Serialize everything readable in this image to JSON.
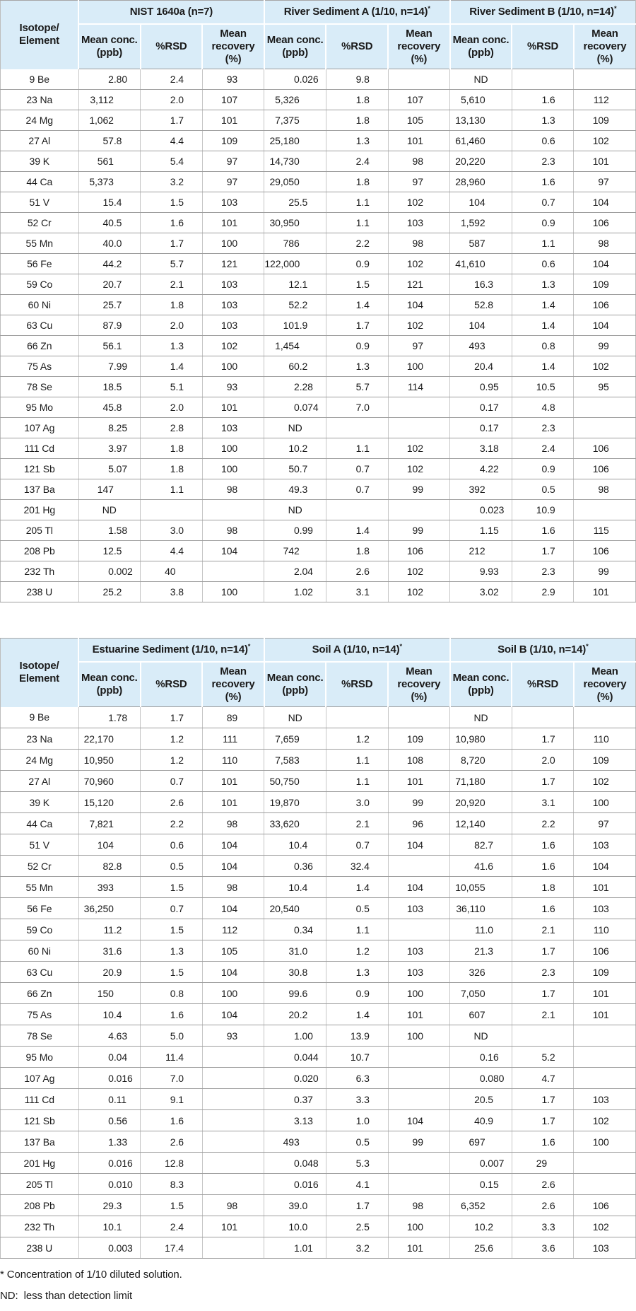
{
  "colors": {
    "header_bg": "#d9ecf8",
    "row_line": "#9e9e9e",
    "column_line": "#c6c6c6",
    "text": "#1a1a1a"
  },
  "footnotes": [
    "* Concentration of 1/10 diluted solution.",
    "ND:  less than detection limit"
  ],
  "tables": [
    {
      "corner_lines": [
        "Isotope/",
        "Element"
      ],
      "groups": [
        "NIST 1640a (n=7)",
        "River Sediment A (1/10, n=14)*",
        "River Sediment B (1/10, n=14)*"
      ],
      "sub_header_lines": [
        [
          "Mean conc.",
          "(ppb)"
        ],
        [
          "%RSD"
        ],
        [
          "Mean",
          "recovery",
          "(%)"
        ]
      ],
      "rows": [
        {
          "element": "9 Be",
          "values": [
            "2.80",
            "2.4",
            "93",
            "0.026",
            "9.8",
            "",
            "ND",
            "",
            ""
          ]
        },
        {
          "element": "23 Na",
          "values": [
            "3,112",
            "2.0",
            "107",
            "5,326",
            "1.8",
            "107",
            "5,610",
            "1.6",
            "112"
          ]
        },
        {
          "element": "24 Mg",
          "values": [
            "1,062",
            "1.7",
            "101",
            "7,375",
            "1.8",
            "105",
            "13,130",
            "1.3",
            "109"
          ]
        },
        {
          "element": "27 Al",
          "values": [
            "57.8",
            "4.4",
            "109",
            "25,180",
            "1.3",
            "101",
            "61,460",
            "0.6",
            "102"
          ]
        },
        {
          "element": "39 K",
          "values": [
            "561",
            "5.4",
            "97",
            "14,730",
            "2.4",
            "98",
            "20,220",
            "2.3",
            "101"
          ]
        },
        {
          "element": "44 Ca",
          "values": [
            "5,373",
            "3.2",
            "97",
            "29,050",
            "1.8",
            "97",
            "28,960",
            "1.6",
            "97"
          ]
        },
        {
          "element": "51 V",
          "values": [
            "15.4",
            "1.5",
            "103",
            "25.5",
            "1.1",
            "102",
            "104",
            "0.7",
            "104"
          ]
        },
        {
          "element": "52 Cr",
          "values": [
            "40.5",
            "1.6",
            "101",
            "30,950",
            "1.1",
            "103",
            "1,592",
            "0.9",
            "106"
          ]
        },
        {
          "element": "55 Mn",
          "values": [
            "40.0",
            "1.7",
            "100",
            "786",
            "2.2",
            "98",
            "587",
            "1.1",
            "98"
          ]
        },
        {
          "element": "56 Fe",
          "values": [
            "44.2",
            "5.7",
            "121",
            "122,000",
            "0.9",
            "102",
            "41,610",
            "0.6",
            "104"
          ]
        },
        {
          "element": "59 Co",
          "values": [
            "20.7",
            "2.1",
            "103",
            "12.1",
            "1.5",
            "121",
            "16.3",
            "1.3",
            "109"
          ]
        },
        {
          "element": "60 Ni",
          "values": [
            "25.7",
            "1.8",
            "103",
            "52.2",
            "1.4",
            "104",
            "52.8",
            "1.4",
            "106"
          ]
        },
        {
          "element": "63 Cu",
          "values": [
            "87.9",
            "2.0",
            "103",
            "101.9",
            "1.7",
            "102",
            "104",
            "1.4",
            "104"
          ]
        },
        {
          "element": "66 Zn",
          "values": [
            "56.1",
            "1.3",
            "102",
            "1,454",
            "0.9",
            "97",
            "493",
            "0.8",
            "99"
          ]
        },
        {
          "element": "75 As",
          "values": [
            "7.99",
            "1.4",
            "100",
            "60.2",
            "1.3",
            "100",
            "20.4",
            "1.4",
            "102"
          ]
        },
        {
          "element": "78 Se",
          "values": [
            "18.5",
            "5.1",
            "93",
            "2.28",
            "5.7",
            "114",
            "0.95",
            "10.5",
            "95"
          ]
        },
        {
          "element": "95 Mo",
          "values": [
            "45.8",
            "2.0",
            "101",
            "0.074",
            "7.0",
            "",
            "0.17",
            "4.8",
            ""
          ]
        },
        {
          "element": "107 Ag",
          "values": [
            "8.25",
            "2.8",
            "103",
            "ND",
            "",
            "",
            "0.17",
            "2.3",
            ""
          ]
        },
        {
          "element": "111 Cd",
          "values": [
            "3.97",
            "1.8",
            "100",
            "10.2",
            "1.1",
            "102",
            "3.18",
            "2.4",
            "106"
          ]
        },
        {
          "element": "121 Sb",
          "values": [
            "5.07",
            "1.8",
            "100",
            "50.7",
            "0.7",
            "102",
            "4.22",
            "0.9",
            "106"
          ]
        },
        {
          "element": "137 Ba",
          "values": [
            "147",
            "1.1",
            "98",
            "49.3",
            "0.7",
            "99",
            "392",
            "0.5",
            "98"
          ]
        },
        {
          "element": "201 Hg",
          "values": [
            "ND",
            "",
            "",
            "ND",
            "",
            "",
            "0.023",
            "10.9",
            ""
          ]
        },
        {
          "element": "205 Tl",
          "values": [
            "1.58",
            "3.0",
            "98",
            "0.99",
            "1.4",
            "99",
            "1.15",
            "1.6",
            "115"
          ]
        },
        {
          "element": "208 Pb",
          "values": [
            "12.5",
            "4.4",
            "104",
            "742",
            "1.8",
            "106",
            "212",
            "1.7",
            "106"
          ]
        },
        {
          "element": "232 Th",
          "values": [
            "0.002",
            "40",
            "",
            "2.04",
            "2.6",
            "102",
            "9.93",
            "2.3",
            "99"
          ]
        },
        {
          "element": "238 U",
          "values": [
            "25.2",
            "3.8",
            "100",
            "1.02",
            "3.1",
            "102",
            "3.02",
            "2.9",
            "101"
          ]
        }
      ]
    },
    {
      "corner_lines": [
        "Isotope/",
        "Element"
      ],
      "groups": [
        "Estuarine Sediment (1/10, n=14)*",
        "Soil A (1/10, n=14)*",
        "Soil B (1/10, n=14)*"
      ],
      "sub_header_lines": [
        [
          "Mean conc.",
          "(ppb)"
        ],
        [
          "%RSD"
        ],
        [
          "Mean",
          "recovery",
          "(%)"
        ]
      ],
      "rows": [
        {
          "element": "9 Be",
          "values": [
            "1.78",
            "1.7",
            "89",
            "ND",
            "",
            "",
            "ND",
            "",
            ""
          ]
        },
        {
          "element": "23 Na",
          "values": [
            "22,170",
            "1.2",
            "111",
            "7,659",
            "1.2",
            "109",
            "10,980",
            "1.7",
            "110"
          ]
        },
        {
          "element": "24 Mg",
          "values": [
            "10,950",
            "1.2",
            "110",
            "7,583",
            "1.1",
            "108",
            "8,720",
            "2.0",
            "109"
          ]
        },
        {
          "element": "27 Al",
          "values": [
            "70,960",
            "0.7",
            "101",
            "50,750",
            "1.1",
            "101",
            "71,180",
            "1.7",
            "102"
          ]
        },
        {
          "element": "39 K",
          "values": [
            "15,120",
            "2.6",
            "101",
            "19,870",
            "3.0",
            "99",
            "20,920",
            "3.1",
            "100"
          ]
        },
        {
          "element": "44 Ca",
          "values": [
            "7,821",
            "2.2",
            "98",
            "33,620",
            "2.1",
            "96",
            "12,140",
            "2.2",
            "97"
          ]
        },
        {
          "element": "51 V",
          "values": [
            "104",
            "0.6",
            "104",
            "10.4",
            "0.7",
            "104",
            "82.7",
            "1.6",
            "103"
          ]
        },
        {
          "element": "52 Cr",
          "values": [
            "82.8",
            "0.5",
            "104",
            "0.36",
            "32.4",
            "",
            "41.6",
            "1.6",
            "104"
          ]
        },
        {
          "element": "55 Mn",
          "values": [
            "393",
            "1.5",
            "98",
            "10.4",
            "1.4",
            "104",
            "10,055",
            "1.8",
            "101"
          ]
        },
        {
          "element": "56 Fe",
          "values": [
            "36,250",
            "0.7",
            "104",
            "20,540",
            "0.5",
            "103",
            "36,110",
            "1.6",
            "103"
          ]
        },
        {
          "element": "59 Co",
          "values": [
            "11.2",
            "1.5",
            "112",
            "0.34",
            "1.1",
            "",
            "11.0",
            "2.1",
            "110"
          ]
        },
        {
          "element": "60 Ni",
          "values": [
            "31.6",
            "1.3",
            "105",
            "31.0",
            "1.2",
            "103",
            "21.3",
            "1.7",
            "106"
          ]
        },
        {
          "element": "63 Cu",
          "values": [
            "20.9",
            "1.5",
            "104",
            "30.8",
            "1.3",
            "103",
            "326",
            "2.3",
            "109"
          ]
        },
        {
          "element": "66 Zn",
          "values": [
            "150",
            "0.8",
            "100",
            "99.6",
            "0.9",
            "100",
            "7,050",
            "1.7",
            "101"
          ]
        },
        {
          "element": "75 As",
          "values": [
            "10.4",
            "1.6",
            "104",
            "20.2",
            "1.4",
            "101",
            "607",
            "2.1",
            "101"
          ]
        },
        {
          "element": "78 Se",
          "values": [
            "4.63",
            "5.0",
            "93",
            "1.00",
            "13.9",
            "100",
            "ND",
            "",
            ""
          ]
        },
        {
          "element": "95 Mo",
          "values": [
            "0.04",
            "11.4",
            "",
            "0.044",
            "10.7",
            "",
            "0.16",
            "5.2",
            ""
          ]
        },
        {
          "element": "107 Ag",
          "values": [
            "0.016",
            "7.0",
            "",
            "0.020",
            "6.3",
            "",
            "0.080",
            "4.7",
            ""
          ]
        },
        {
          "element": "111 Cd",
          "values": [
            "0.11",
            "9.1",
            "",
            "0.37",
            "3.3",
            "",
            "20.5",
            "1.7",
            "103"
          ]
        },
        {
          "element": "121 Sb",
          "values": [
            "0.56",
            "1.6",
            "",
            "3.13",
            "1.0",
            "104",
            "40.9",
            "1.7",
            "102"
          ]
        },
        {
          "element": "137 Ba",
          "values": [
            "1.33",
            "2.6",
            "",
            "493",
            "0.5",
            "99",
            "697",
            "1.6",
            "100"
          ]
        },
        {
          "element": "201 Hg",
          "values": [
            "0.016",
            "12.8",
            "",
            "0.048",
            "5.3",
            "",
            "0.007",
            "29",
            ""
          ]
        },
        {
          "element": "205 Tl",
          "values": [
            "0.010",
            "8.3",
            "",
            "0.016",
            "4.1",
            "",
            "0.15",
            "2.6",
            ""
          ]
        },
        {
          "element": "208 Pb",
          "values": [
            "29.3",
            "1.5",
            "98",
            "39.0",
            "1.7",
            "98",
            "6,352",
            "2.6",
            "106"
          ]
        },
        {
          "element": "232 Th",
          "values": [
            "10.1",
            "2.4",
            "101",
            "10.0",
            "2.5",
            "100",
            "10.2",
            "3.3",
            "102"
          ]
        },
        {
          "element": "238 U",
          "values": [
            "0.003",
            "17.4",
            "",
            "1.01",
            "3.2",
            "101",
            "25.6",
            "3.6",
            "103"
          ]
        }
      ]
    }
  ]
}
